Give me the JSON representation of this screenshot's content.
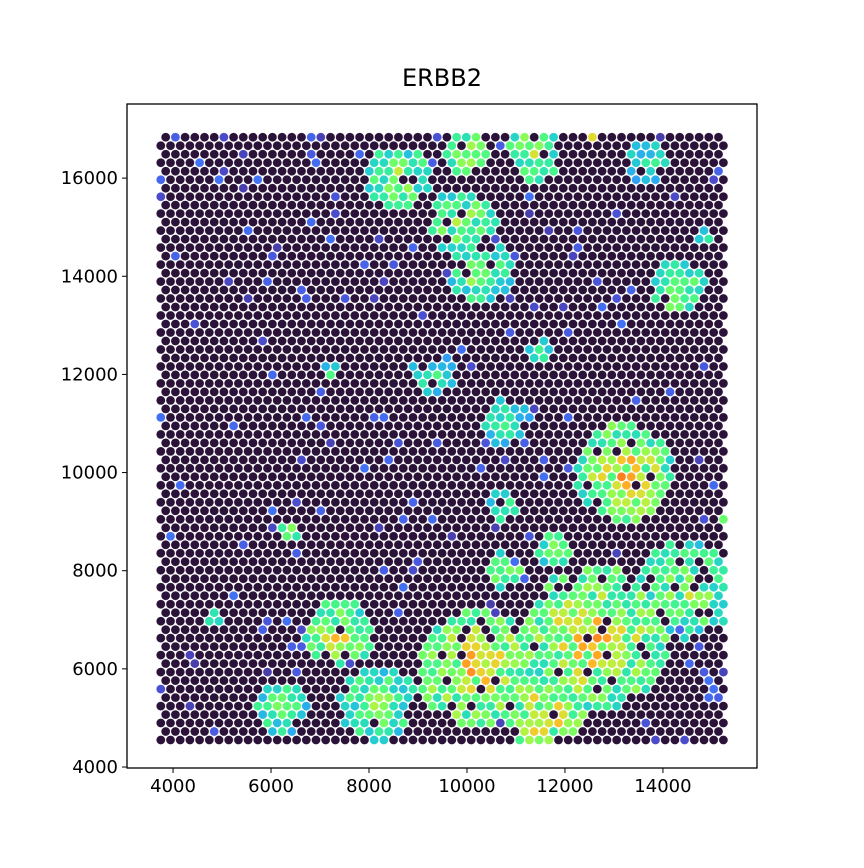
{
  "chart_data": {
    "type": "scatter",
    "title": "ERBB2",
    "xlabel": "",
    "ylabel": "",
    "xlim": [
      3060,
      15920
    ],
    "ylim": [
      3980,
      17510
    ],
    "xticks": [
      4000,
      6000,
      8000,
      10000,
      12000,
      14000
    ],
    "yticks": [
      4000,
      6000,
      8000,
      10000,
      12000,
      14000,
      16000
    ],
    "xtick_labels": [
      "4000",
      "6000",
      "8000",
      "10000",
      "12000",
      "14000"
    ],
    "ytick_labels": [
      "4000",
      "6000",
      "8000",
      "10000",
      "12000",
      "14000",
      "16000"
    ],
    "grid": false,
    "legend": "none",
    "colormap": "turbo",
    "background_color": "#2b1238",
    "spot_extent": {
      "x": [
        3750,
        15300
      ],
      "y": [
        4550,
        16880
      ]
    },
    "spot_spacing": {
      "x": 198,
      "y": 173
    },
    "expression_regions": [
      {
        "x": 8600,
        "y": 16000,
        "r": 650,
        "level": 0.45
      },
      {
        "x": 9900,
        "y": 15100,
        "r": 700,
        "level": 0.45
      },
      {
        "x": 10300,
        "y": 14100,
        "r": 650,
        "level": 0.45
      },
      {
        "x": 11400,
        "y": 16500,
        "r": 550,
        "level": 0.5
      },
      {
        "x": 10000,
        "y": 16500,
        "r": 500,
        "level": 0.45
      },
      {
        "x": 13700,
        "y": 16300,
        "r": 450,
        "level": 0.3
      },
      {
        "x": 14300,
        "y": 13800,
        "r": 550,
        "level": 0.5
      },
      {
        "x": 14800,
        "y": 14800,
        "r": 200,
        "level": 0.35
      },
      {
        "x": 9300,
        "y": 12000,
        "r": 450,
        "level": 0.3
      },
      {
        "x": 11500,
        "y": 12500,
        "r": 300,
        "level": 0.3
      },
      {
        "x": 10800,
        "y": 11000,
        "r": 500,
        "level": 0.3
      },
      {
        "x": 7200,
        "y": 12000,
        "r": 200,
        "level": 0.28
      },
      {
        "x": 13200,
        "y": 10000,
        "r": 1000,
        "level": 0.62
      },
      {
        "x": 10700,
        "y": 9300,
        "r": 300,
        "level": 0.35
      },
      {
        "x": 6400,
        "y": 8800,
        "r": 220,
        "level": 0.5
      },
      {
        "x": 4800,
        "y": 7000,
        "r": 250,
        "level": 0.5
      },
      {
        "x": 7400,
        "y": 6700,
        "r": 700,
        "level": 0.55
      },
      {
        "x": 10200,
        "y": 6000,
        "r": 1200,
        "level": 0.62
      },
      {
        "x": 12600,
        "y": 6600,
        "r": 1500,
        "level": 0.6
      },
      {
        "x": 14500,
        "y": 7600,
        "r": 1000,
        "level": 0.45
      },
      {
        "x": 6200,
        "y": 5200,
        "r": 550,
        "level": 0.38
      },
      {
        "x": 8200,
        "y": 5300,
        "r": 800,
        "level": 0.4
      },
      {
        "x": 10800,
        "y": 8000,
        "r": 400,
        "level": 0.45
      },
      {
        "x": 11800,
        "y": 8400,
        "r": 350,
        "level": 0.5
      },
      {
        "x": 11600,
        "y": 5100,
        "r": 800,
        "level": 0.62
      },
      {
        "x": 12600,
        "y": 16900,
        "r": 150,
        "level": 0.95
      },
      {
        "x": 15300,
        "y": 9000,
        "r": 120,
        "level": 0.85
      },
      {
        "x": 12100,
        "y": 5300,
        "r": 150,
        "level": 0.8
      }
    ]
  }
}
